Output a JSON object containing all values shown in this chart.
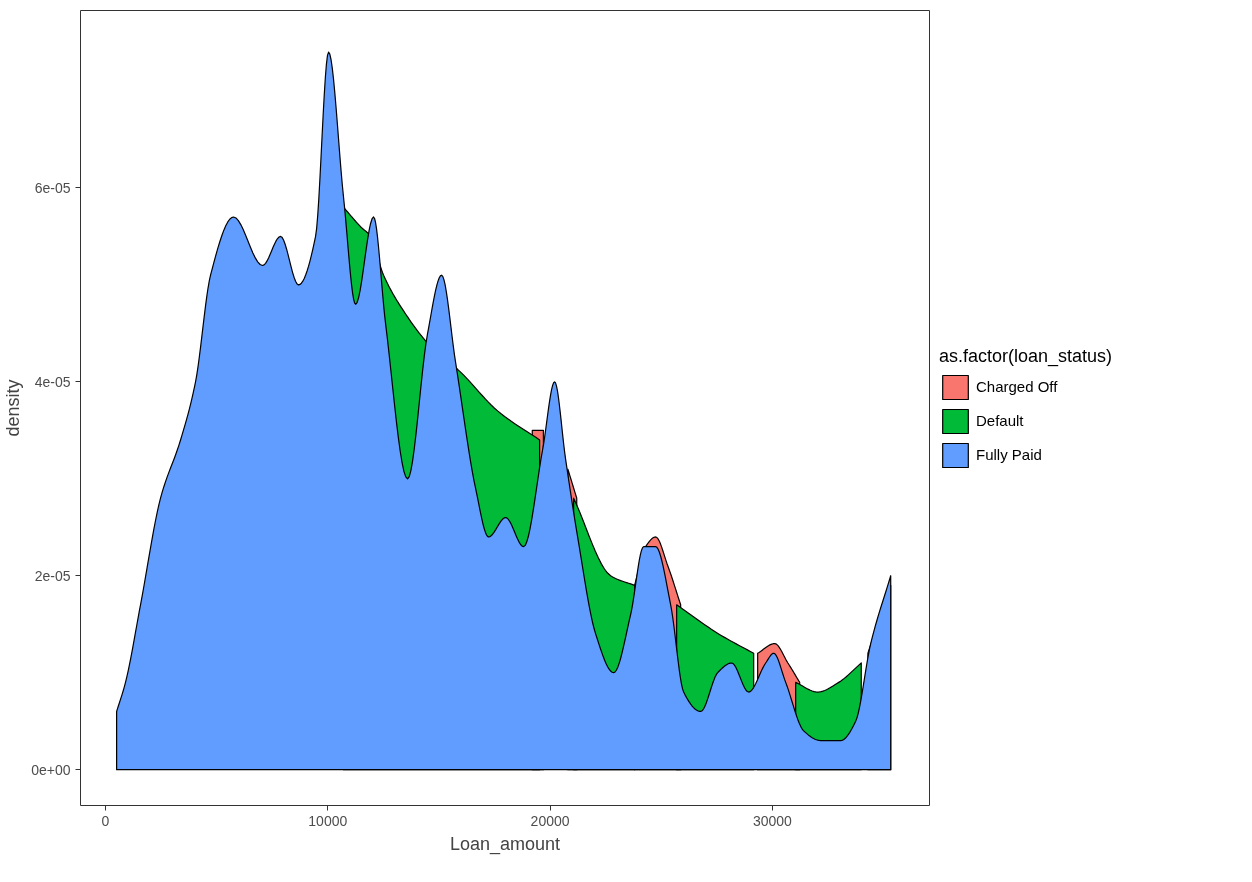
{
  "chart_data": {
    "type": "area",
    "xlabel": "Loan_amount",
    "ylabel": "density",
    "legend_title": "as.factor(loan_status)",
    "xlim": [
      -1125,
      37070
    ],
    "ylim": [
      -3.7e-06,
      7.83e-05
    ],
    "xticks": [
      0,
      10000,
      20000,
      30000
    ],
    "yticks": [
      {
        "value": 0,
        "label": "0e+00"
      },
      {
        "value": 2e-05,
        "label": "2e-05"
      },
      {
        "value": 4e-05,
        "label": "4e-05"
      },
      {
        "value": 6e-05,
        "label": "6e-05"
      }
    ],
    "grid": false,
    "legend": "right",
    "series": [
      {
        "name": "Charged Off",
        "color": "#f8766d",
        "x": [
          19200,
          19700,
          20200,
          20800,
          21200,
          22700,
          23800,
          24300,
          24750,
          25300,
          25875,
          27585,
          28900,
          29340,
          30105,
          30700,
          31230,
          32500,
          34300,
          34875,
          35325
        ],
        "values": [
          3.5e-05,
          3.5e-05,
          null,
          3.1e-05,
          2.8e-05,
          null,
          1.9e-05,
          2.3e-05,
          2.4e-05,
          2.1e-05,
          1.7e-05,
          null,
          null,
          1.2e-05,
          1.3e-05,
          1.1e-05,
          9e-06,
          null,
          1.2e-05,
          1.6e-05,
          1.9e-05
        ]
      },
      {
        "name": "Default",
        "color": "#00ba38",
        "x": [
          10710,
          11475,
          11925,
          12510,
          13500,
          14490,
          15975,
          17640,
          19530,
          20200,
          21060,
          22725,
          23805,
          24700,
          25695,
          27585,
          29160,
          30100,
          31050,
          32040,
          32985,
          34000
        ],
        "values": [
          5.8e-05,
          5.6e-05,
          5.5e-05,
          5.1e-05,
          4.7e-05,
          4.4e-05,
          4.1e-05,
          3.7e-05,
          3.4e-05,
          null,
          2.8e-05,
          2e-05,
          1.9e-05,
          null,
          1.7e-05,
          1.4e-05,
          1.2e-05,
          null,
          9e-06,
          8e-06,
          9e-06,
          1.1e-05
        ]
      },
      {
        "name": "Fully Paid",
        "color": "#619cff",
        "x": [
          500,
          900,
          1575,
          2475,
          3375,
          4050,
          4725,
          5760,
          7065,
          7875,
          8685,
          9450,
          10035,
          10710,
          11250,
          12060,
          12600,
          13590,
          14490,
          15120,
          15750,
          16650,
          17235,
          18000,
          18810,
          19665,
          20205,
          20700,
          21240,
          22050,
          22860,
          23625,
          24210,
          24750,
          25425,
          26010,
          26775,
          27540,
          28170,
          28935,
          29700,
          30060,
          30600,
          31410,
          32175,
          33075,
          33750,
          34425,
          35325
        ],
        "values": [
          6e-06,
          9e-06,
          1.7e-05,
          2.8e-05,
          3.4e-05,
          4e-05,
          5.1e-05,
          5.7e-05,
          5.2e-05,
          5.5e-05,
          5e-05,
          5.5e-05,
          7.4e-05,
          5.9e-05,
          4.8e-05,
          5.7e-05,
          4.6e-05,
          3e-05,
          4.5e-05,
          5.1e-05,
          4.2e-05,
          2.9e-05,
          2.4e-05,
          2.6e-05,
          2.3e-05,
          3.3e-05,
          4e-05,
          3.2e-05,
          2.4e-05,
          1.4e-05,
          1e-05,
          1.6e-05,
          2.3e-05,
          2.3e-05,
          1.7e-05,
          8e-06,
          6e-06,
          1e-05,
          1.1e-05,
          8e-06,
          1.1e-05,
          1.2e-05,
          9e-06,
          4e-06,
          3e-06,
          3e-06,
          5e-06,
          1.3e-05,
          2e-05
        ]
      }
    ]
  }
}
